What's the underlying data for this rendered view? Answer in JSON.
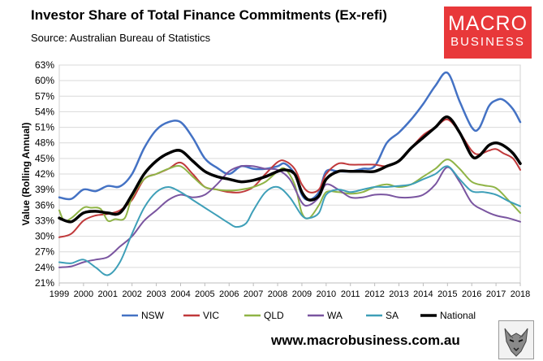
{
  "chart_data": {
    "type": "line",
    "title": "Investor Share of Total Finance Commitments (Ex-refi)",
    "subtitle": "Source: Australian Bureau of Statistics",
    "ylabel": "Value (Rolling Annual)",
    "xlabel": "",
    "ylim": [
      21,
      63
    ],
    "xlim": [
      1999,
      2018
    ],
    "y_ticks": [
      21,
      24,
      27,
      30,
      33,
      36,
      39,
      42,
      45,
      48,
      51,
      54,
      57,
      60,
      63
    ],
    "y_tick_labels": [
      "21%",
      "24%",
      "27%",
      "30%",
      "33%",
      "36%",
      "39%",
      "42%",
      "45%",
      "48%",
      "51%",
      "54%",
      "57%",
      "60%",
      "63%"
    ],
    "x_ticks": [
      1999,
      2000,
      2001,
      2002,
      2003,
      2004,
      2005,
      2006,
      2007,
      2008,
      2009,
      2010,
      2011,
      2012,
      2013,
      2014,
      2015,
      2016,
      2017,
      2018
    ],
    "x_tick_labels": [
      "1999",
      "2000",
      "2001",
      "2002",
      "2003",
      "2004",
      "2005",
      "2006",
      "2007",
      "2008",
      "2009",
      "2010",
      "2011",
      "2012",
      "2013",
      "2014",
      "2015",
      "2016",
      "2017",
      "2018"
    ],
    "grid": true,
    "legend_position": "bottom",
    "series": [
      {
        "name": "NSW",
        "color": "#4472c4",
        "width": 2.5,
        "x": [
          1999,
          1999.5,
          2000,
          2000.5,
          2001,
          2001.5,
          2002,
          2002.5,
          2003,
          2003.5,
          2004,
          2004.5,
          2005,
          2005.5,
          2006,
          2006.5,
          2007,
          2007.5,
          2008,
          2008.3,
          2008.7,
          2009,
          2009.3,
          2009.7,
          2010,
          2010.5,
          2011,
          2011.5,
          2012,
          2012.5,
          2013,
          2013.5,
          2014,
          2014.5,
          2015,
          2015.5,
          2016,
          2016.3,
          2016.7,
          2017,
          2017.3,
          2017.7,
          2018
        ],
        "y": [
          37.5,
          37.2,
          39,
          38.7,
          39.7,
          39.6,
          42,
          47,
          50.5,
          52,
          52,
          49,
          45,
          43.2,
          42,
          43.5,
          43,
          43,
          43.5,
          44,
          42,
          38,
          37,
          38.5,
          42.5,
          42.5,
          42.5,
          43,
          43.5,
          48,
          50,
          52.5,
          55.5,
          59,
          61.5,
          56,
          51,
          50.8,
          55,
          56.2,
          56.3,
          54.5,
          52
        ]
      },
      {
        "name": "VIC",
        "color": "#c0393b",
        "width": 2,
        "x": [
          1999,
          1999.5,
          2000,
          2000.5,
          2001,
          2001.5,
          2002,
          2002.5,
          2003,
          2003.5,
          2004,
          2004.5,
          2005,
          2005.5,
          2006,
          2006.5,
          2007,
          2007.5,
          2008,
          2008.3,
          2008.7,
          2009,
          2009.3,
          2009.7,
          2010,
          2010.5,
          2011,
          2011.5,
          2012,
          2012.5,
          2013,
          2013.5,
          2014,
          2014.5,
          2015,
          2015.5,
          2016,
          2016.3,
          2016.7,
          2017,
          2017.3,
          2017.7,
          2018
        ],
        "y": [
          29.8,
          30.5,
          33,
          34,
          34.3,
          35,
          37,
          41,
          42,
          43,
          44.2,
          42,
          39.5,
          39,
          38.5,
          38.5,
          39.5,
          42,
          44.3,
          44.5,
          43,
          40,
          38.5,
          39,
          42,
          44,
          43.8,
          43.8,
          43.8,
          43.5,
          44.5,
          47,
          49.5,
          51,
          52.5,
          50,
          46.5,
          45.8,
          46.5,
          46.8,
          46,
          45,
          42.8
        ]
      },
      {
        "name": "QLD",
        "color": "#8fb446",
        "width": 2,
        "x": [
          1999,
          1999.2,
          1999.5,
          2000,
          2000.3,
          2000.7,
          2001,
          2001.3,
          2001.7,
          2002,
          2002.5,
          2003,
          2003.5,
          2004,
          2004.5,
          2005,
          2005.5,
          2006,
          2006.5,
          2007,
          2007.5,
          2008,
          2008.3,
          2008.7,
          2009,
          2009.3,
          2009.7,
          2010,
          2010.5,
          2011,
          2011.5,
          2012,
          2012.5,
          2013,
          2013.5,
          2014,
          2014.5,
          2015,
          2015.5,
          2016,
          2016.5,
          2017,
          2017.5,
          2018
        ],
        "y": [
          35,
          33,
          33.5,
          35.5,
          35.5,
          35.3,
          33,
          33.3,
          33.5,
          37.5,
          41,
          42,
          43,
          43.5,
          41.5,
          39.5,
          39,
          38.8,
          39,
          39.5,
          40.5,
          42.5,
          43,
          40,
          34.5,
          33.5,
          36,
          38.5,
          38.5,
          38.2,
          38.5,
          39.5,
          40,
          39.5,
          40,
          41.5,
          43,
          44.8,
          43,
          40.5,
          39.8,
          39.3,
          37,
          34.5
        ]
      },
      {
        "name": "WA",
        "color": "#7a55a0",
        "width": 2,
        "x": [
          1999,
          1999.5,
          2000,
          2000.5,
          2001,
          2001.5,
          2002,
          2002.5,
          2003,
          2003.5,
          2004,
          2004.5,
          2005,
          2005.5,
          2006,
          2006.5,
          2007,
          2007.5,
          2008,
          2008.5,
          2009,
          2009.3,
          2009.7,
          2010,
          2010.5,
          2011,
          2011.5,
          2012,
          2012.5,
          2013,
          2013.5,
          2014,
          2014.5,
          2015,
          2015.5,
          2016,
          2016.5,
          2017,
          2017.5,
          2018
        ],
        "y": [
          24,
          24.2,
          25,
          25.5,
          26,
          28,
          30,
          33,
          35,
          37,
          38,
          37.5,
          38,
          40,
          42.5,
          43.5,
          43.5,
          43,
          42.8,
          41,
          36.5,
          36,
          37.5,
          40,
          39,
          37.5,
          37.5,
          38,
          38,
          37.5,
          37.5,
          38,
          40,
          43.3,
          40.5,
          36.5,
          35,
          34,
          33.5,
          32.8
        ]
      },
      {
        "name": "SA",
        "color": "#3e9fb8",
        "width": 2,
        "x": [
          1999,
          1999.5,
          2000,
          2000.5,
          2001,
          2001.5,
          2002,
          2002.5,
          2003,
          2003.5,
          2004,
          2004.5,
          2005,
          2005.5,
          2006,
          2006.3,
          2006.7,
          2007,
          2007.5,
          2008,
          2008.5,
          2009,
          2009.3,
          2009.7,
          2010,
          2010.5,
          2011,
          2011.5,
          2012,
          2012.5,
          2013,
          2013.5,
          2014,
          2014.5,
          2015,
          2015.5,
          2016,
          2016.5,
          2017,
          2017.5,
          2018
        ],
        "y": [
          25,
          24.8,
          25.5,
          24,
          22.5,
          25,
          30.5,
          35.5,
          38.5,
          39.5,
          38.5,
          37,
          35.5,
          34,
          32.5,
          31.8,
          32.5,
          35,
          38.5,
          39.5,
          37.5,
          34,
          33.5,
          34.5,
          38,
          39,
          38.5,
          39,
          39.5,
          39.5,
          39.7,
          40,
          41,
          42,
          43.5,
          41,
          38.7,
          38.5,
          38,
          36.8,
          35.8
        ]
      },
      {
        "name": "National",
        "color": "#000000",
        "width": 3.5,
        "x": [
          1999,
          1999.5,
          2000,
          2000.5,
          2001,
          2001.5,
          2002,
          2002.5,
          2003,
          2003.5,
          2004,
          2004.5,
          2005,
          2005.5,
          2006,
          2006.5,
          2007,
          2007.5,
          2008,
          2008.3,
          2008.7,
          2009,
          2009.3,
          2009.7,
          2010,
          2010.5,
          2011,
          2011.5,
          2012,
          2012.5,
          2013,
          2013.5,
          2014,
          2014.5,
          2015,
          2015.5,
          2016,
          2016.3,
          2016.7,
          2017,
          2017.3,
          2017.7,
          2018
        ],
        "y": [
          33.5,
          32.8,
          34.5,
          34.8,
          34.5,
          34.5,
          38,
          42,
          44.5,
          46,
          46.5,
          44.5,
          42.5,
          41.5,
          41,
          40.5,
          40.8,
          41.5,
          42.5,
          42.8,
          42,
          38.5,
          37,
          37.8,
          41,
          42.5,
          42.5,
          42.5,
          42.5,
          43.5,
          44.5,
          47,
          49,
          51,
          53,
          50,
          45.5,
          45.5,
          47.5,
          48,
          47.5,
          46,
          44
        ]
      }
    ]
  },
  "legend": {
    "items": [
      {
        "label": "NSW",
        "color": "#4472c4"
      },
      {
        "label": "VIC",
        "color": "#c0393b"
      },
      {
        "label": "QLD",
        "color": "#8fb446"
      },
      {
        "label": "WA",
        "color": "#7a55a0"
      },
      {
        "label": "SA",
        "color": "#3e9fb8"
      },
      {
        "label": "National",
        "color": "#000000"
      }
    ]
  },
  "branding": {
    "logo_line1": "MACRO",
    "logo_line2": "BUSINESS",
    "logo_color": "#e8383a",
    "url": "www.macrobusiness.com.au",
    "mascot": "wolf-icon"
  }
}
